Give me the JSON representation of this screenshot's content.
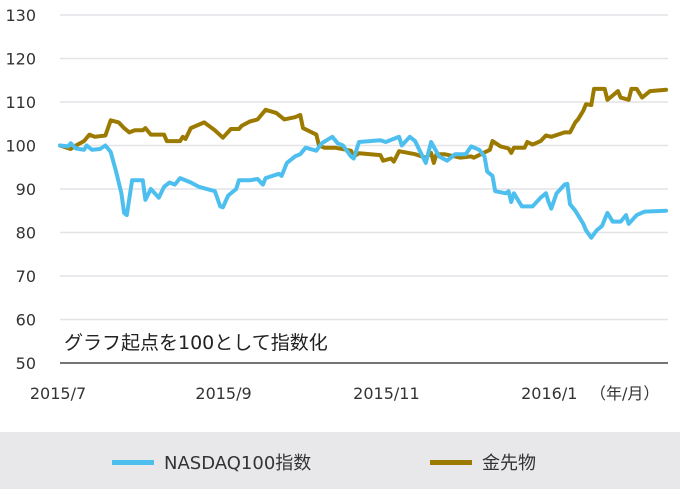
{
  "chart_data": {
    "type": "line",
    "title": "",
    "xlabel": "",
    "ylabel": "",
    "unit_label": "（年/月）",
    "annotation": "グラフ起点を100として指数化",
    "ylim": [
      50,
      130
    ],
    "yticks": [
      50,
      60,
      70,
      80,
      90,
      100,
      110,
      120,
      130
    ],
    "xticks": [
      {
        "date": "2015-07-01",
        "label": "2015/7"
      },
      {
        "date": "2015-09-01",
        "label": "2015/9"
      },
      {
        "date": "2015-11-01",
        "label": "2015/11"
      },
      {
        "date": "2016-01-01",
        "label": "2016/1"
      }
    ],
    "grid": true,
    "legend_placement": "bottom",
    "series": [
      {
        "name": "NASDAQ100指数",
        "color": "#4dbfef",
        "points": [
          [
            "2015-07-01",
            100
          ],
          [
            "2015-07-04",
            99.8
          ],
          [
            "2015-07-05",
            100.5
          ],
          [
            "2015-07-07",
            99.3
          ],
          [
            "2015-07-10",
            99
          ],
          [
            "2015-07-11",
            100
          ],
          [
            "2015-07-13",
            99
          ],
          [
            "2015-07-16",
            99.2
          ],
          [
            "2015-07-18",
            100
          ],
          [
            "2015-07-20",
            98.5
          ],
          [
            "2015-07-22",
            94
          ],
          [
            "2015-07-24",
            89
          ],
          [
            "2015-07-25",
            84.5
          ],
          [
            "2015-07-26",
            84
          ],
          [
            "2015-07-28",
            92
          ],
          [
            "2015-08-01",
            92
          ],
          [
            "2015-08-02",
            87.5
          ],
          [
            "2015-08-04",
            90
          ],
          [
            "2015-08-07",
            88
          ],
          [
            "2015-08-09",
            90.5
          ],
          [
            "2015-08-11",
            91.5
          ],
          [
            "2015-08-13",
            91
          ],
          [
            "2015-08-15",
            92.5
          ],
          [
            "2015-08-19",
            91.5
          ],
          [
            "2015-08-22",
            90.5
          ],
          [
            "2015-08-28",
            89.5
          ],
          [
            "2015-08-30",
            86
          ],
          [
            "2015-08-31",
            85.8
          ],
          [
            "2015-09-02",
            88.5
          ],
          [
            "2015-09-05",
            90
          ],
          [
            "2015-09-06",
            92
          ],
          [
            "2015-09-10",
            92
          ],
          [
            "2015-09-13",
            92.3
          ],
          [
            "2015-09-15",
            91
          ],
          [
            "2015-09-16",
            92.5
          ],
          [
            "2015-09-21",
            93.5
          ],
          [
            "2015-09-22",
            93
          ],
          [
            "2015-09-24",
            96
          ],
          [
            "2015-09-27",
            97.5
          ],
          [
            "2015-09-29",
            98
          ],
          [
            "2015-10-01",
            99.5
          ],
          [
            "2015-10-05",
            98.8
          ],
          [
            "2015-10-07",
            100.5
          ],
          [
            "2015-10-11",
            102
          ],
          [
            "2015-10-13",
            100.5
          ],
          [
            "2015-10-15",
            100
          ],
          [
            "2015-10-18",
            97.5
          ],
          [
            "2015-10-19",
            97
          ],
          [
            "2015-10-21",
            100.8
          ],
          [
            "2015-10-29",
            101.2
          ],
          [
            "2015-10-31",
            100.8
          ],
          [
            "2015-11-05",
            102
          ],
          [
            "2015-11-06",
            100
          ],
          [
            "2015-11-09",
            102
          ],
          [
            "2015-11-11",
            101
          ],
          [
            "2015-11-13",
            98.5
          ],
          [
            "2015-11-15",
            96
          ],
          [
            "2015-11-17",
            100.8
          ],
          [
            "2015-11-20",
            97.5
          ],
          [
            "2015-11-23",
            96.5
          ],
          [
            "2015-11-26",
            98
          ],
          [
            "2015-11-30",
            98
          ],
          [
            "2015-12-02",
            99.8
          ],
          [
            "2015-12-05",
            99
          ],
          [
            "2015-12-07",
            97.5
          ],
          [
            "2015-12-08",
            94
          ],
          [
            "2015-12-10",
            93
          ],
          [
            "2015-12-11",
            89.5
          ],
          [
            "2015-12-15",
            89
          ],
          [
            "2015-12-16",
            89.5
          ],
          [
            "2015-12-17",
            87
          ],
          [
            "2015-12-18",
            89
          ],
          [
            "2015-12-21",
            86
          ],
          [
            "2015-12-25",
            86
          ],
          [
            "2015-12-28",
            88
          ],
          [
            "2015-12-30",
            89
          ],
          [
            "2015-12-31",
            87
          ],
          [
            "2016-01-01",
            85.5
          ],
          [
            "2016-01-03",
            89
          ],
          [
            "2016-01-06",
            91
          ],
          [
            "2016-01-07",
            91.2
          ],
          [
            "2016-01-08",
            86.5
          ],
          [
            "2016-01-10",
            85
          ],
          [
            "2016-01-13",
            82
          ],
          [
            "2016-01-14",
            80.5
          ],
          [
            "2016-01-16",
            78.8
          ],
          [
            "2016-01-18",
            80.5
          ],
          [
            "2016-01-20",
            81.5
          ],
          [
            "2016-01-22",
            84.5
          ],
          [
            "2016-01-24",
            82.5
          ],
          [
            "2016-01-27",
            82.5
          ],
          [
            "2016-01-29",
            84
          ],
          [
            "2016-01-30",
            82
          ],
          [
            "2016-02-02",
            84
          ],
          [
            "2016-02-05",
            84.8
          ],
          [
            "2016-02-13",
            85
          ]
        ]
      },
      {
        "name": "金先物",
        "color": "#9c7a00",
        "points": [
          [
            "2015-07-01",
            100
          ],
          [
            "2015-07-05",
            99.2
          ],
          [
            "2015-07-07",
            100
          ],
          [
            "2015-07-10",
            101
          ],
          [
            "2015-07-12",
            102.5
          ],
          [
            "2015-07-14",
            102
          ],
          [
            "2015-07-18",
            102.3
          ],
          [
            "2015-07-20",
            105.8
          ],
          [
            "2015-07-23",
            105.3
          ],
          [
            "2015-07-25",
            104
          ],
          [
            "2015-07-27",
            103
          ],
          [
            "2015-07-29",
            103.5
          ],
          [
            "2015-08-01",
            103.5
          ],
          [
            "2015-08-02",
            104
          ],
          [
            "2015-08-04",
            102.5
          ],
          [
            "2015-08-09",
            102.5
          ],
          [
            "2015-08-10",
            101
          ],
          [
            "2015-08-15",
            101
          ],
          [
            "2015-08-16",
            102
          ],
          [
            "2015-08-17",
            101.5
          ],
          [
            "2015-08-19",
            104
          ],
          [
            "2015-08-24",
            105.3
          ],
          [
            "2015-08-28",
            103.5
          ],
          [
            "2015-08-31",
            101.8
          ],
          [
            "2015-09-03",
            103.8
          ],
          [
            "2015-09-06",
            103.8
          ],
          [
            "2015-09-07",
            104.5
          ],
          [
            "2015-09-10",
            105.5
          ],
          [
            "2015-09-13",
            106
          ],
          [
            "2015-09-16",
            108.2
          ],
          [
            "2015-09-20",
            107.5
          ],
          [
            "2015-09-23",
            106
          ],
          [
            "2015-09-27",
            106.5
          ],
          [
            "2015-09-29",
            107
          ],
          [
            "2015-09-30",
            104
          ],
          [
            "2015-10-05",
            102.5
          ],
          [
            "2015-10-06",
            100
          ],
          [
            "2015-10-08",
            99.5
          ],
          [
            "2015-10-12",
            99.5
          ],
          [
            "2015-10-18",
            98.8
          ],
          [
            "2015-10-19",
            97.5
          ],
          [
            "2015-10-21",
            98.2
          ],
          [
            "2015-10-29",
            97.8
          ],
          [
            "2015-10-30",
            96.5
          ],
          [
            "2015-11-02",
            97
          ],
          [
            "2015-11-03",
            96.3
          ],
          [
            "2015-11-05",
            98.7
          ],
          [
            "2015-11-11",
            98
          ],
          [
            "2015-11-15",
            97.2
          ],
          [
            "2015-11-17",
            98.3
          ],
          [
            "2015-11-18",
            96
          ],
          [
            "2015-11-19",
            98
          ],
          [
            "2015-11-22",
            98
          ],
          [
            "2015-11-28",
            97.2
          ],
          [
            "2015-12-02",
            97.5
          ],
          [
            "2015-12-03",
            97.2
          ],
          [
            "2015-12-09",
            99
          ],
          [
            "2015-12-10",
            101
          ],
          [
            "2015-12-13",
            99.8
          ],
          [
            "2015-12-16",
            99.3
          ],
          [
            "2015-12-17",
            98.3
          ],
          [
            "2015-12-18",
            99.5
          ],
          [
            "2015-12-22",
            99.5
          ],
          [
            "2015-12-23",
            100.8
          ],
          [
            "2015-12-25",
            100.2
          ],
          [
            "2015-12-28",
            101
          ],
          [
            "2015-12-30",
            102.3
          ],
          [
            "2016-01-01",
            102
          ],
          [
            "2016-01-06",
            103
          ],
          [
            "2016-01-08",
            103
          ],
          [
            "2016-01-10",
            105.3
          ],
          [
            "2016-01-11",
            106
          ],
          [
            "2016-01-13",
            108
          ],
          [
            "2016-01-14",
            109.5
          ],
          [
            "2016-01-16",
            109.3
          ],
          [
            "2016-01-17",
            113
          ],
          [
            "2016-01-21",
            113
          ],
          [
            "2016-01-22",
            110.5
          ],
          [
            "2016-01-24",
            111.5
          ],
          [
            "2016-01-26",
            112.5
          ],
          [
            "2016-01-27",
            111
          ],
          [
            "2016-01-30",
            110.5
          ],
          [
            "2016-01-31",
            113
          ],
          [
            "2016-02-02",
            113
          ],
          [
            "2016-02-04",
            111
          ],
          [
            "2016-02-07",
            112.5
          ],
          [
            "2016-02-13",
            112.8
          ]
        ]
      }
    ]
  }
}
